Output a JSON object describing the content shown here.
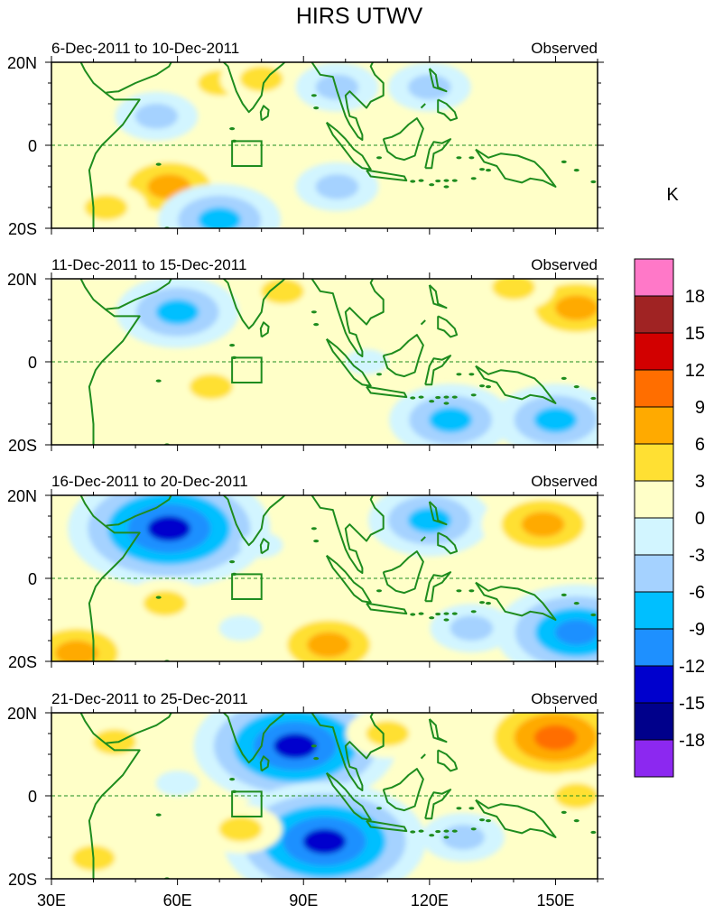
{
  "chart_data": {
    "type": "heatmap",
    "title": "HIRS UTWV",
    "units": "K",
    "x_ticks": [
      "30E",
      "60E",
      "90E",
      "120E",
      "150E"
    ],
    "x_values": [
      30,
      60,
      90,
      120,
      150
    ],
    "xlim": [
      30,
      160
    ],
    "y_ticks": [
      "20N",
      "0",
      "20S"
    ],
    "y_values": [
      20,
      0,
      -20
    ],
    "ylim": [
      -20,
      20
    ],
    "colorbar": {
      "labels": [
        "18",
        "15",
        "12",
        "9",
        "6",
        "3",
        "0",
        "-3",
        "-6",
        "-9",
        "-12",
        "-15",
        "-18"
      ],
      "colors": [
        "#ff78c8",
        "#a02323",
        "#d20000",
        "#ff6e00",
        "#ffaa00",
        "#ffe033",
        "#ffffc8",
        "#d2f5ff",
        "#a5d2ff",
        "#00bfff",
        "#1e90ff",
        "#0000cd",
        "#00008b",
        "#8c28f0"
      ]
    },
    "box_region": {
      "lon": [
        73,
        80
      ],
      "lat": [
        -5,
        1
      ]
    },
    "panels": [
      {
        "date_range": "6-Dec-2011 to 10-Dec-2011",
        "label": "Observed",
        "anomalies": [
          {
            "lon": 70,
            "lat": 15,
            "value": 6
          },
          {
            "lon": 80,
            "lat": 16,
            "value": 6
          },
          {
            "lon": 58,
            "lat": -10,
            "value": 9
          },
          {
            "lon": 43,
            "lat": -15,
            "value": 6
          },
          {
            "lon": 55,
            "lat": 7,
            "value": -6
          },
          {
            "lon": 120,
            "lat": 14,
            "value": -6
          },
          {
            "lon": 98,
            "lat": 14,
            "value": -6
          },
          {
            "lon": 98,
            "lat": -10,
            "value": -6
          },
          {
            "lon": 70,
            "lat": -18,
            "value": -9
          },
          {
            "lon": 150,
            "lat": 3,
            "value": 3
          }
        ]
      },
      {
        "date_range": "11-Dec-2011 to 15-Dec-2011",
        "label": "Observed",
        "anomalies": [
          {
            "lon": 60,
            "lat": 12,
            "value": -9
          },
          {
            "lon": 68,
            "lat": -6,
            "value": 6
          },
          {
            "lon": 155,
            "lat": 13,
            "value": 9
          },
          {
            "lon": 85,
            "lat": 17,
            "value": 6
          },
          {
            "lon": 140,
            "lat": 18,
            "value": 6
          },
          {
            "lon": 105,
            "lat": 0,
            "value": -3
          },
          {
            "lon": 125,
            "lat": -14,
            "value": -9
          },
          {
            "lon": 150,
            "lat": -14,
            "value": -9
          },
          {
            "lon": 40,
            "lat": -12,
            "value": 3
          }
        ]
      },
      {
        "date_range": "16-Dec-2011 to 20-Dec-2011",
        "label": "Observed",
        "anomalies": [
          {
            "lon": 58,
            "lat": 12,
            "value": -15
          },
          {
            "lon": 155,
            "lat": -13,
            "value": -12
          },
          {
            "lon": 96,
            "lat": -16,
            "value": 9
          },
          {
            "lon": 120,
            "lat": 14,
            "value": -9
          },
          {
            "lon": 147,
            "lat": 13,
            "value": 9
          },
          {
            "lon": 57,
            "lat": -6,
            "value": 6
          },
          {
            "lon": 36,
            "lat": -18,
            "value": 9
          },
          {
            "lon": 130,
            "lat": -12,
            "value": -6
          },
          {
            "lon": 80,
            "lat": 8,
            "value": -3
          },
          {
            "lon": 75,
            "lat": -12,
            "value": -3
          }
        ]
      },
      {
        "date_range": "21-Dec-2011 to 25-Dec-2011",
        "label": "Observed",
        "anomalies": [
          {
            "lon": 88,
            "lat": 12,
            "value": -15
          },
          {
            "lon": 95,
            "lat": -11,
            "value": -15
          },
          {
            "lon": 150,
            "lat": 14,
            "value": 12
          },
          {
            "lon": 45,
            "lat": 13,
            "value": 6
          },
          {
            "lon": 110,
            "lat": 15,
            "value": 6
          },
          {
            "lon": 40,
            "lat": -15,
            "value": 6
          },
          {
            "lon": 75,
            "lat": -8,
            "value": 6
          },
          {
            "lon": 128,
            "lat": -10,
            "value": -6
          },
          {
            "lon": 155,
            "lat": 0,
            "value": 6
          },
          {
            "lon": 60,
            "lat": 3,
            "value": -3
          }
        ]
      }
    ]
  }
}
